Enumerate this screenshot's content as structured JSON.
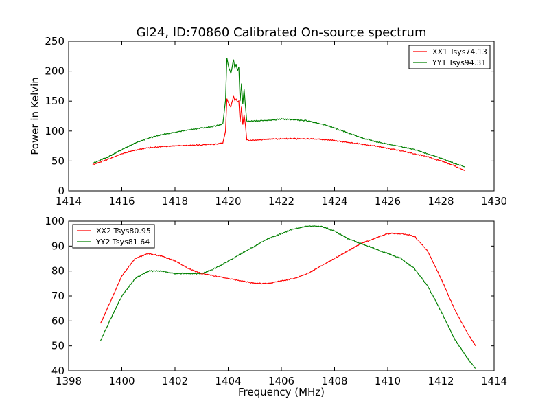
{
  "figure": {
    "title": "Gl24, ID:70860 Calibrated On-source spectrum",
    "ylabel": "Power in Kelvin",
    "xlabel": "Frequency (MHz)"
  },
  "colors": {
    "red": "#ff0000",
    "green": "#008000"
  },
  "chart_data": [
    {
      "type": "line",
      "title": "Gl24, ID:70860 Calibrated On-source spectrum",
      "xlabel": "",
      "ylabel": "Power in Kelvin",
      "xlim": [
        1414,
        1430
      ],
      "ylim": [
        0,
        250
      ],
      "xticks": [
        1414,
        1416,
        1418,
        1420,
        1422,
        1424,
        1426,
        1428,
        1430
      ],
      "yticks": [
        0,
        50,
        100,
        150,
        200,
        250
      ],
      "grid": false,
      "legend": "top-right",
      "series": [
        {
          "name": "XX1 Tsys74.13",
          "color": "#ff0000",
          "x": [
            1414.9,
            1415.5,
            1416.0,
            1416.5,
            1417.0,
            1417.5,
            1418.0,
            1418.5,
            1419.0,
            1419.5,
            1419.8,
            1419.9,
            1419.95,
            1420.0,
            1420.1,
            1420.2,
            1420.25,
            1420.3,
            1420.35,
            1420.4,
            1420.45,
            1420.5,
            1420.55,
            1420.6,
            1420.65,
            1420.7,
            1420.8,
            1421.0,
            1421.5,
            1422.0,
            1422.5,
            1423.0,
            1423.5,
            1424.0,
            1424.5,
            1425.0,
            1425.5,
            1426.0,
            1426.5,
            1427.0,
            1427.5,
            1428.0,
            1428.5,
            1428.9
          ],
          "y": [
            44,
            53,
            62,
            68,
            72,
            74,
            75,
            76,
            77,
            78,
            80,
            100,
            155,
            148,
            140,
            158,
            150,
            153,
            148,
            150,
            115,
            140,
            110,
            128,
            110,
            86,
            84,
            85,
            86,
            87,
            87,
            87,
            86,
            84,
            81,
            78,
            75,
            71,
            67,
            62,
            57,
            50,
            42,
            34
          ]
        },
        {
          "name": "YY1 Tsys94.31",
          "color": "#008000",
          "x": [
            1414.9,
            1415.5,
            1416.0,
            1416.5,
            1417.0,
            1417.5,
            1418.0,
            1418.5,
            1419.0,
            1419.5,
            1419.8,
            1419.9,
            1419.95,
            1420.0,
            1420.1,
            1420.2,
            1420.25,
            1420.3,
            1420.35,
            1420.4,
            1420.45,
            1420.5,
            1420.55,
            1420.6,
            1420.65,
            1420.7,
            1420.8,
            1421.0,
            1421.5,
            1422.0,
            1422.5,
            1423.0,
            1423.5,
            1424.0,
            1424.5,
            1425.0,
            1425.5,
            1426.0,
            1426.5,
            1427.0,
            1427.5,
            1428.0,
            1428.5,
            1428.9
          ],
          "y": [
            46,
            57,
            69,
            80,
            88,
            94,
            98,
            102,
            105,
            108,
            112,
            150,
            222,
            210,
            195,
            220,
            205,
            212,
            200,
            208,
            150,
            180,
            145,
            170,
            140,
            116,
            116,
            117,
            118,
            120,
            119,
            117,
            112,
            105,
            97,
            89,
            83,
            78,
            74,
            69,
            62,
            55,
            46,
            40
          ]
        }
      ]
    },
    {
      "type": "line",
      "title": "",
      "xlabel": "Frequency (MHz)",
      "ylabel": "",
      "xlim": [
        1398,
        1414
      ],
      "ylim": [
        40,
        100
      ],
      "xticks": [
        1398,
        1400,
        1402,
        1404,
        1406,
        1408,
        1410,
        1412,
        1414
      ],
      "yticks": [
        40,
        50,
        60,
        70,
        80,
        90,
        100
      ],
      "grid": false,
      "legend": "top-left",
      "series": [
        {
          "name": "XX2 Tsys80.95",
          "color": "#ff0000",
          "x": [
            1399.2,
            1399.5,
            1400.0,
            1400.5,
            1401.0,
            1401.5,
            1402.0,
            1402.5,
            1403.0,
            1403.5,
            1404.0,
            1404.5,
            1405.0,
            1405.5,
            1406.0,
            1406.5,
            1407.0,
            1407.5,
            1408.0,
            1408.5,
            1409.0,
            1409.5,
            1410.0,
            1410.5,
            1411.0,
            1411.5,
            1412.0,
            1412.5,
            1413.0,
            1413.3
          ],
          "y": [
            59,
            66,
            78,
            85,
            87,
            86,
            84,
            81,
            79,
            78,
            77,
            76,
            75,
            75,
            76,
            77,
            79,
            82,
            85,
            88,
            91,
            93,
            95,
            95,
            94,
            88,
            77,
            65,
            55,
            50
          ]
        },
        {
          "name": "YY2 Tsys81.64",
          "color": "#008000",
          "x": [
            1399.2,
            1399.5,
            1400.0,
            1400.5,
            1401.0,
            1401.5,
            1402.0,
            1402.5,
            1403.0,
            1403.5,
            1404.0,
            1404.5,
            1405.0,
            1405.5,
            1406.0,
            1406.5,
            1407.0,
            1407.5,
            1408.0,
            1408.5,
            1409.0,
            1409.5,
            1410.0,
            1410.5,
            1411.0,
            1411.5,
            1412.0,
            1412.5,
            1413.0,
            1413.3
          ],
          "y": [
            52,
            59,
            70,
            77,
            80,
            80,
            79,
            79,
            79,
            81,
            84,
            87,
            90,
            93,
            95,
            97,
            98,
            98,
            96,
            93,
            91,
            89,
            87,
            85,
            81,
            74,
            64,
            53,
            45,
            41
          ]
        }
      ]
    }
  ]
}
